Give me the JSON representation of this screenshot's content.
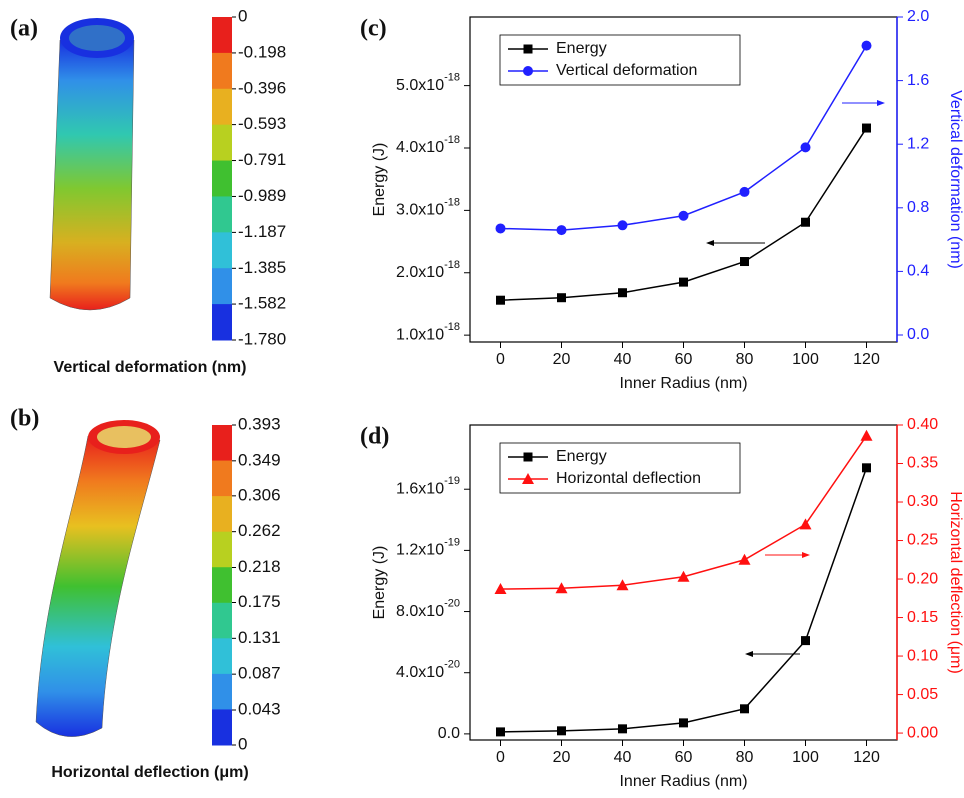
{
  "fem_panels": [
    {
      "label": "(a)",
      "caption": "Vertical deformation (nm)",
      "colorbar": {
        "ticks": [
          0,
          -0.198,
          -0.396,
          -0.593,
          -0.791,
          -0.989,
          -1.187,
          -1.385,
          -1.582,
          {
            "value": -1.78,
            "label": "-1.780"
          }
        ],
        "colors": [
          "#e8201c",
          "#f07a1e",
          "#e8b020",
          "#b8d020",
          "#40c030",
          "#30c890",
          "#30c0d8",
          "#3090e8",
          "#1830e0"
        ]
      }
    },
    {
      "label": "(b)",
      "caption": "Horizontal deflection (μm)",
      "colorbar": {
        "ticks": [
          0.393,
          0.349,
          0.306,
          0.262,
          0.218,
          0.175,
          0.131,
          0.087,
          0.043,
          0
        ],
        "colors": [
          "#e8201c",
          "#f07a1e",
          "#e8b020",
          "#b8d020",
          "#40c030",
          "#30c890",
          "#30c0d8",
          "#3090e8",
          "#1830e0"
        ]
      }
    }
  ],
  "chart_data": [
    {
      "type": "line",
      "label": "(c)",
      "xlabel": "Inner Radius (nm)",
      "ylabel": "Energy (J)",
      "y2label": "Vertical deformation (nm)",
      "y2color": "#2020ff",
      "x": [
        0,
        20,
        40,
        60,
        80,
        100,
        120
      ],
      "xlim": [
        -10,
        130
      ],
      "xticks": [
        0,
        20,
        40,
        60,
        80,
        100,
        120
      ],
      "ylim": [
        8.9e-19,
        6.1e-18
      ],
      "yticks": [
        {
          "value": 1e-18,
          "label": "1.0x10",
          "sup": "-18"
        },
        {
          "value": 2e-18,
          "label": "2.0x10",
          "sup": "-18"
        },
        {
          "value": 3e-18,
          "label": "3.0x10",
          "sup": "-18"
        },
        {
          "value": 4e-18,
          "label": "4.0x10",
          "sup": "-18"
        },
        {
          "value": 5e-18,
          "label": "5.0x10",
          "sup": "-18"
        }
      ],
      "y2lim": [
        -0.044,
        2.0
      ],
      "y2ticks": [
        {
          "value": 0,
          "label": "0.0"
        },
        0.4,
        0.8,
        1.2,
        1.6,
        {
          "value": 2,
          "label": "2.0"
        }
      ],
      "series": [
        {
          "name": "Energy",
          "color": "#000000",
          "marker": "square",
          "values": [
            1.56e-18,
            1.6e-18,
            1.68e-18,
            1.85e-18,
            2.18e-18,
            2.81e-18,
            4.32e-18
          ]
        },
        {
          "name": "Vertical deformation",
          "color": "#2020ff",
          "marker": "circle",
          "axis": "y2",
          "values": [
            0.67,
            0.66,
            0.69,
            0.75,
            0.9,
            1.18,
            1.82
          ]
        }
      ]
    },
    {
      "type": "line",
      "label": "(d)",
      "xlabel": "Inner Radius (nm)",
      "ylabel": "Energy (J)",
      "y2label": "Horizontal deflection (μm)",
      "y2color": "#ff1010",
      "x": [
        0,
        20,
        40,
        60,
        80,
        100,
        120
      ],
      "xlim": [
        -10,
        130
      ],
      "xticks": [
        0,
        20,
        40,
        60,
        80,
        100,
        120
      ],
      "ylim": [
        -4e-21,
        2.02e-19
      ],
      "yticks": [
        {
          "value": 0,
          "label": "0.0"
        },
        {
          "value": 4e-20,
          "label": "4.0x10",
          "sup": "-20"
        },
        {
          "value": 8e-20,
          "label": "8.0x10",
          "sup": "-20"
        },
        {
          "value": 1.2e-19,
          "label": "1.2x10",
          "sup": "-19"
        },
        {
          "value": 1.6e-19,
          "label": "1.6x10",
          "sup": "-19"
        }
      ],
      "y2lim": [
        -0.009,
        0.4
      ],
      "y2ticks": [
        {
          "value": 0,
          "label": "0.00"
        },
        0.05,
        {
          "value": 0.1,
          "label": "0.10"
        },
        0.15,
        {
          "value": 0.2,
          "label": "0.20"
        },
        0.25,
        {
          "value": 0.3,
          "label": "0.30"
        },
        0.35,
        {
          "value": 0.4,
          "label": "0.40"
        }
      ],
      "series": [
        {
          "name": "Energy",
          "color": "#000000",
          "marker": "square",
          "values": [
            1.3e-21,
            2e-21,
            3.3e-21,
            7.2e-21,
            1.64e-20,
            6.1e-20,
            1.74e-19
          ]
        },
        {
          "name": "Horizontal deflection",
          "color": "#ff1010",
          "marker": "triangle",
          "axis": "y2",
          "values": [
            0.187,
            0.188,
            0.192,
            0.203,
            0.225,
            0.271,
            0.386
          ]
        }
      ]
    }
  ]
}
